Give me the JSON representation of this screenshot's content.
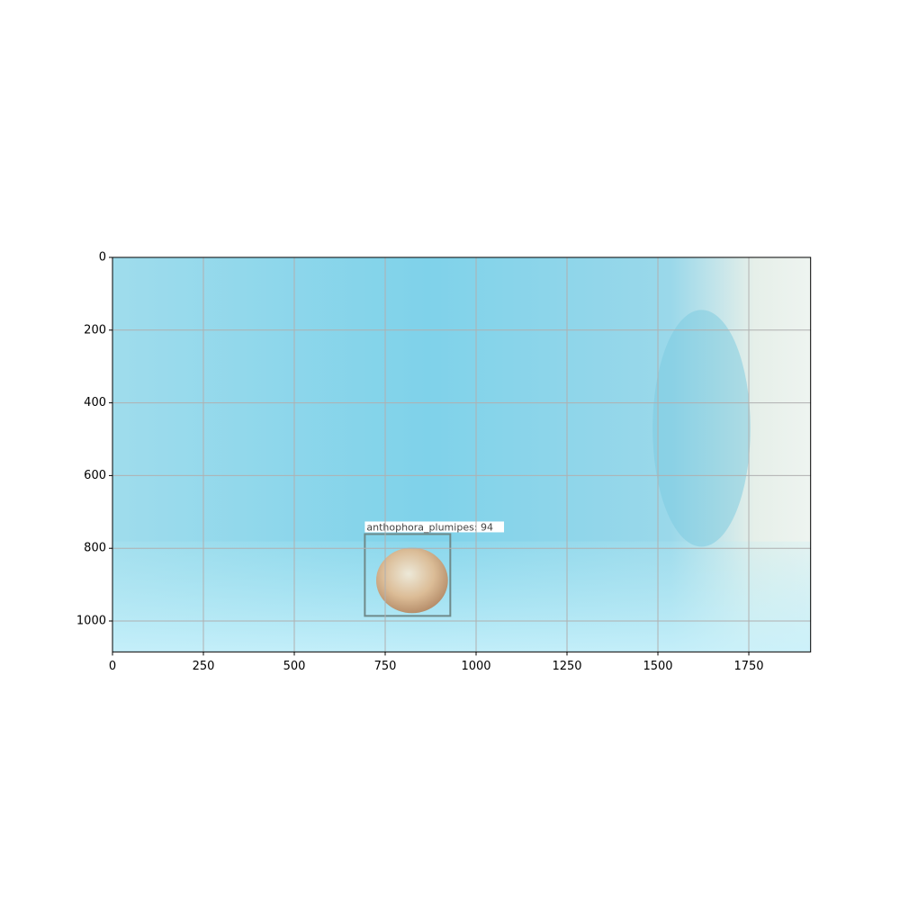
{
  "chart_data": {
    "type": "image",
    "xlim": [
      0,
      1920
    ],
    "ylim": [
      1085,
      0
    ],
    "xticks": [
      0,
      250,
      500,
      750,
      1000,
      1250,
      1500,
      1750
    ],
    "yticks": [
      0,
      200,
      400,
      600,
      800,
      1000
    ],
    "grid": true,
    "detections": [
      {
        "label": "anthophora_plumipes: 94",
        "color": "#6f8a8a",
        "box": {
          "x0": 694,
          "y0": 761,
          "x1": 929,
          "y1": 986
        }
      }
    ]
  }
}
